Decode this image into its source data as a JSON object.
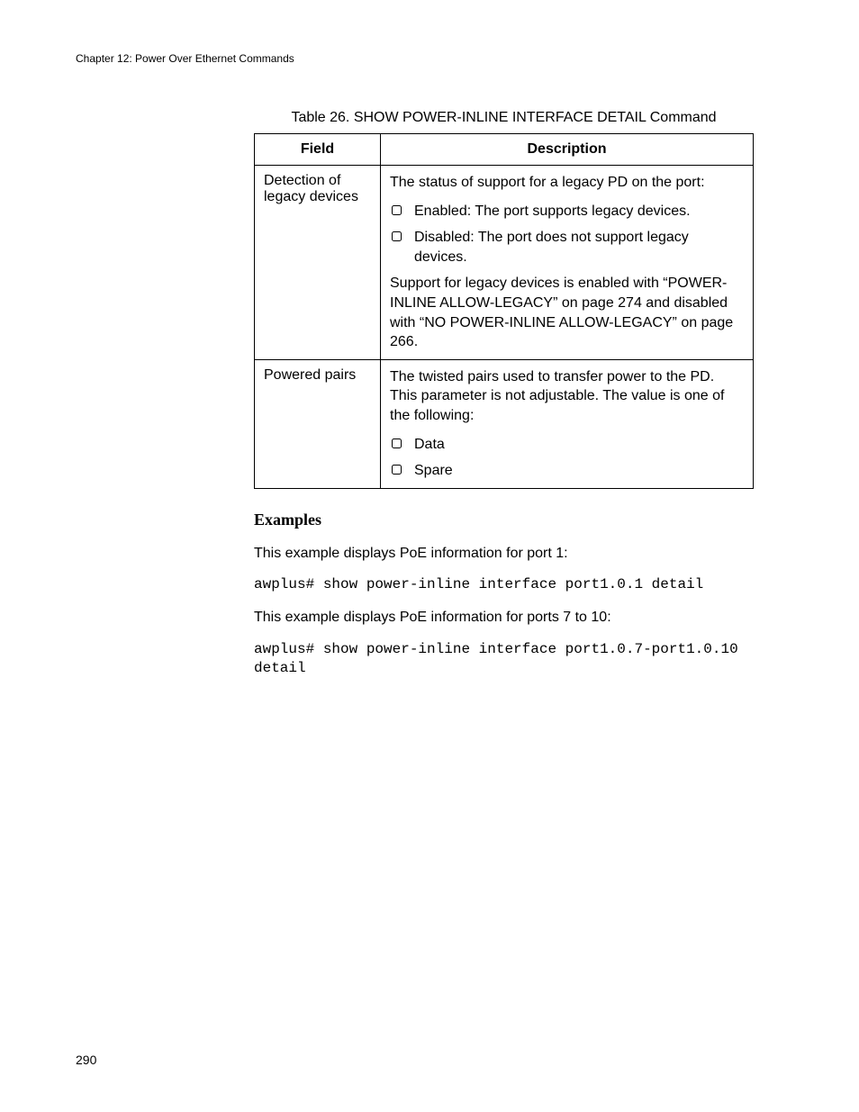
{
  "header": "Chapter 12: Power Over Ethernet Commands",
  "table": {
    "caption": "Table 26. SHOW POWER-INLINE INTERFACE DETAIL Command",
    "columns": [
      "Field",
      "Description"
    ],
    "rows": [
      {
        "field": "Detection of legacy devices",
        "intro": "The status of support for a legacy PD on the port:",
        "bullets": [
          "Enabled: The port supports legacy devices.",
          "Disabled: The port does not support legacy devices."
        ],
        "outro": "Support for legacy devices is enabled with “POWER-INLINE ALLOW-LEGACY” on page 274 and disabled with “NO POWER-INLINE ALLOW-LEGACY” on page 266."
      },
      {
        "field": "Powered pairs",
        "intro": "The twisted pairs used to transfer power to the PD. This parameter is not adjustable. The value is one of the following:",
        "bullets": [
          "Data",
          "Spare"
        ],
        "outro": ""
      }
    ]
  },
  "examples": {
    "title": "Examples",
    "para1": "This example displays PoE information for port 1:",
    "code1": "awplus# show power-inline interface port1.0.1 detail",
    "para2": "This example displays PoE information for ports 7 to 10:",
    "code2": "awplus# show power-inline interface port1.0.7-port1.0.10 detail"
  },
  "pageNumber": "290"
}
